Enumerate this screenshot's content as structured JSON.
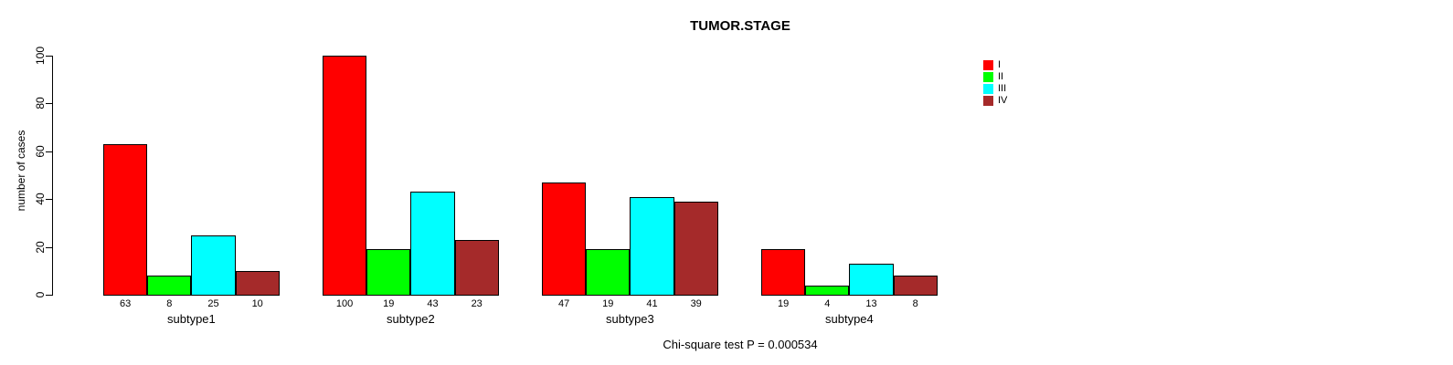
{
  "chart_data": {
    "type": "bar",
    "title": "TUMOR.STAGE",
    "ylabel": "number of cases",
    "xlabel": "",
    "annotation": "Chi-square test P = 0.000534",
    "categories": [
      "subtype1",
      "subtype2",
      "subtype3",
      "subtype4"
    ],
    "series": [
      {
        "name": "I",
        "color": "#ff0000",
        "values": [
          63,
          100,
          47,
          19
        ]
      },
      {
        "name": "II",
        "color": "#00ff00",
        "values": [
          8,
          19,
          19,
          4
        ]
      },
      {
        "name": "III",
        "color": "#00ffff",
        "values": [
          25,
          43,
          41,
          13
        ]
      },
      {
        "name": "IV",
        "color": "#a52a2a",
        "values": [
          10,
          23,
          39,
          8
        ]
      }
    ],
    "bar_value_labels": {
      "subtype1": [
        63,
        8,
        25,
        10
      ],
      "subtype2": [
        100,
        19,
        43,
        23
      ],
      "subtype3": [
        47,
        19,
        41,
        39
      ],
      "subtype4": [
        19,
        4,
        13,
        8
      ]
    },
    "yticks": [
      0,
      20,
      40,
      60,
      80,
      100
    ],
    "ylim": [
      0,
      100
    ],
    "grid": false,
    "legend_position": "top-right-inside",
    "legend_entries": [
      {
        "label": "I",
        "color": "#ff0000"
      },
      {
        "label": "II",
        "color": "#00ff00"
      },
      {
        "label": "III",
        "color": "#00ffff"
      },
      {
        "label": "IV",
        "color": "#a52a2a"
      }
    ]
  }
}
